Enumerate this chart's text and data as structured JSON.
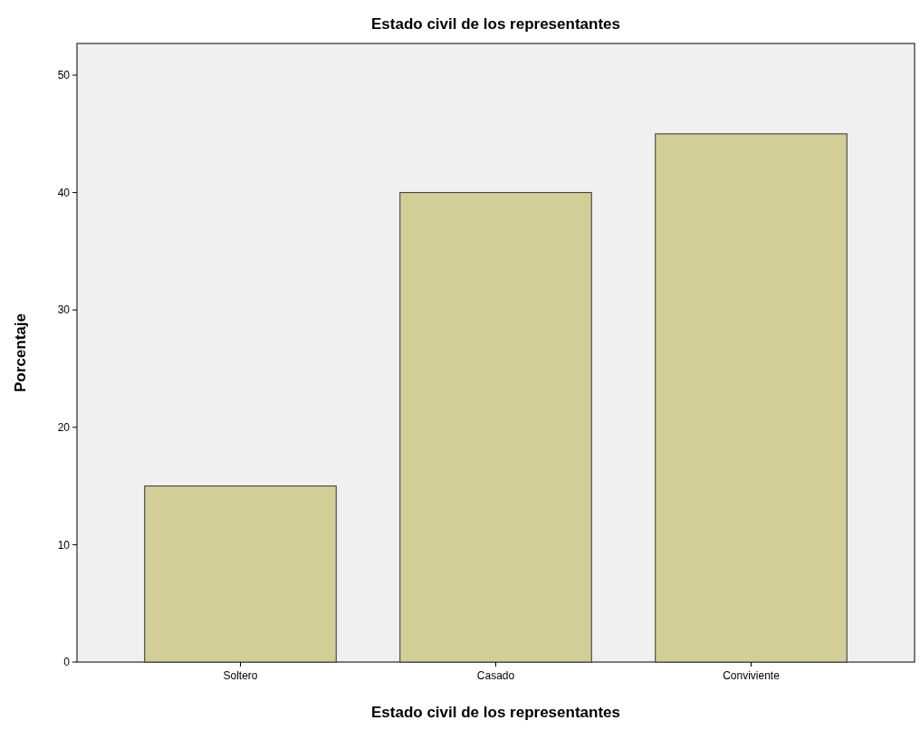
{
  "chart_data": {
    "type": "bar",
    "title": "Estado civil de los representantes",
    "xlabel": "Estado civil de los representantes",
    "ylabel": "Porcentaje",
    "categories": [
      "Soltero",
      "Casado",
      "Conviviente"
    ],
    "values": [
      15,
      40,
      45
    ],
    "color": "#d3ce97",
    "ylim": [
      0,
      52.7
    ],
    "yticks": [
      0,
      10,
      20,
      30,
      40,
      50
    ],
    "grid": false
  }
}
